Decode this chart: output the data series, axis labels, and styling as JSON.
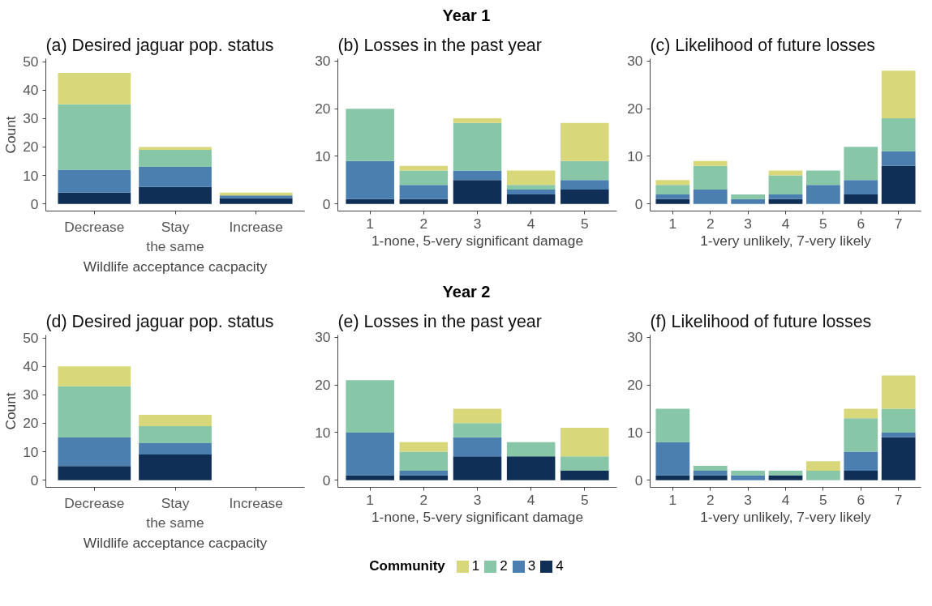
{
  "chart_data": [
    {
      "type": "bar",
      "stacked": true,
      "title": "(a) Desired jaguar pop. status",
      "annotations": [
        "Year 1"
      ],
      "xlabel": "Wildlife acceptance cacpacity",
      "ylabel": "Count",
      "legend": "bottom",
      "categories": [
        "Decrease",
        "Stay\nthe same",
        "Increase"
      ],
      "ylim": [
        -2.5,
        51
      ],
      "yticks": [
        0,
        10,
        20,
        30,
        40,
        50
      ],
      "series": [
        {
          "name": "4",
          "color": "#0f2f57",
          "values": [
            4,
            6,
            2
          ]
        },
        {
          "name": "3",
          "color": "#4a7fb0",
          "values": [
            8,
            7,
            1
          ]
        },
        {
          "name": "2",
          "color": "#88c6a8",
          "values": [
            23,
            6,
            0
          ]
        },
        {
          "name": "1",
          "color": "#d8d87a",
          "values": [
            11,
            1,
            1
          ]
        }
      ]
    },
    {
      "type": "bar",
      "stacked": true,
      "title": "(b) Losses in the past year",
      "xlabel": "1-none, 5-very significant damage",
      "legend": "bottom",
      "categories": [
        "1",
        "2",
        "3",
        "4",
        "5"
      ],
      "ylim": [
        -1.5,
        30.5
      ],
      "yticks": [
        0,
        10,
        20,
        30
      ],
      "series": [
        {
          "name": "4",
          "color": "#0f2f57",
          "values": [
            1,
            1,
            5,
            2,
            3
          ]
        },
        {
          "name": "3",
          "color": "#4a7fb0",
          "values": [
            8,
            3,
            2,
            1,
            2
          ]
        },
        {
          "name": "2",
          "color": "#88c6a8",
          "values": [
            11,
            3,
            10,
            1,
            4
          ]
        },
        {
          "name": "1",
          "color": "#d8d87a",
          "values": [
            0,
            1,
            1,
            3,
            8
          ]
        }
      ]
    },
    {
      "type": "bar",
      "stacked": true,
      "title": "(c) Likelihood of future losses",
      "xlabel": "1-very unlikely, 7-very likely",
      "legend": "bottom",
      "categories": [
        "1",
        "2",
        "3",
        "4",
        "5",
        "6",
        "7"
      ],
      "ylim": [
        -1.5,
        30.5
      ],
      "yticks": [
        0,
        10,
        20,
        30
      ],
      "series": [
        {
          "name": "4",
          "color": "#0f2f57",
          "values": [
            1,
            0,
            0,
            1,
            0,
            2,
            8
          ]
        },
        {
          "name": "3",
          "color": "#4a7fb0",
          "values": [
            1,
            3,
            1,
            1,
            4,
            3,
            3
          ]
        },
        {
          "name": "2",
          "color": "#88c6a8",
          "values": [
            2,
            5,
            1,
            4,
            3,
            7,
            7
          ]
        },
        {
          "name": "1",
          "color": "#d8d87a",
          "values": [
            1,
            1,
            0,
            1,
            0,
            0,
            10
          ]
        }
      ]
    },
    {
      "type": "bar",
      "stacked": true,
      "title": "(d) Desired jaguar pop. status",
      "annotations": [
        "Year 2"
      ],
      "xlabel": "Wildlife acceptance cacpacity",
      "ylabel": "Count",
      "legend": "bottom",
      "categories": [
        "Decrease",
        "Stay\nthe same",
        "Increase"
      ],
      "ylim": [
        -2.5,
        51
      ],
      "yticks": [
        0,
        10,
        20,
        30,
        40,
        50
      ],
      "series": [
        {
          "name": "4",
          "color": "#0f2f57",
          "values": [
            5,
            9,
            0
          ]
        },
        {
          "name": "3",
          "color": "#4a7fb0",
          "values": [
            10,
            4,
            0
          ]
        },
        {
          "name": "2",
          "color": "#88c6a8",
          "values": [
            18,
            6,
            0
          ]
        },
        {
          "name": "1",
          "color": "#d8d87a",
          "values": [
            7,
            4,
            0
          ]
        }
      ]
    },
    {
      "type": "bar",
      "stacked": true,
      "title": "(e) Losses in the past year",
      "xlabel": "1-none, 5-very significant damage",
      "legend": "bottom",
      "categories": [
        "1",
        "2",
        "3",
        "4",
        "5"
      ],
      "ylim": [
        -1.5,
        30.5
      ],
      "yticks": [
        0,
        10,
        20,
        30
      ],
      "series": [
        {
          "name": "4",
          "color": "#0f2f57",
          "values": [
            1,
            1,
            5,
            5,
            2
          ]
        },
        {
          "name": "3",
          "color": "#4a7fb0",
          "values": [
            9,
            1,
            4,
            0,
            0
          ]
        },
        {
          "name": "2",
          "color": "#88c6a8",
          "values": [
            11,
            4,
            3,
            3,
            3
          ]
        },
        {
          "name": "1",
          "color": "#d8d87a",
          "values": [
            0,
            2,
            3,
            0,
            6
          ]
        }
      ]
    },
    {
      "type": "bar",
      "stacked": true,
      "title": "(f) Likelihood of future losses",
      "xlabel": "1-very unlikely, 7-very likely",
      "categories": [
        "1",
        "2",
        "3",
        "4",
        "5",
        "6",
        "7"
      ],
      "ylim": [
        -1.5,
        30.5
      ],
      "yticks": [
        0,
        10,
        20,
        30
      ],
      "legend": "bottom",
      "legend_title": "Community",
      "series": [
        {
          "name": "4",
          "color": "#0f2f57",
          "values": [
            1,
            1,
            0,
            1,
            0,
            2,
            9
          ]
        },
        {
          "name": "3",
          "color": "#4a7fb0",
          "values": [
            7,
            1,
            1,
            0,
            0,
            4,
            1
          ]
        },
        {
          "name": "2",
          "color": "#88c6a8",
          "values": [
            7,
            1,
            1,
            1,
            2,
            7,
            5
          ]
        },
        {
          "name": "1",
          "color": "#d8d87a",
          "values": [
            0,
            0,
            0,
            0,
            2,
            2,
            7
          ]
        }
      ]
    }
  ]
}
